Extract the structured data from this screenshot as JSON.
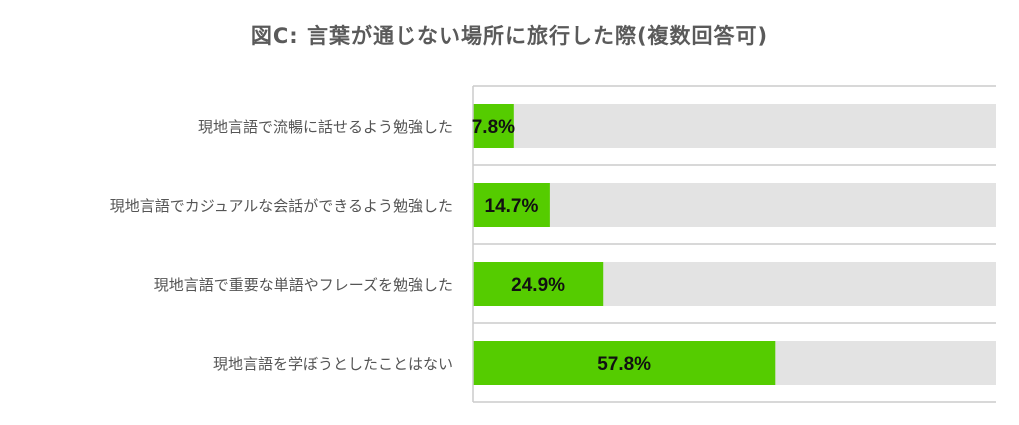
{
  "chart_data": {
    "type": "bar",
    "orientation": "horizontal",
    "title": "図C: 言葉が通じない場所に旅行した際(複数回答可)",
    "categories": [
      "現地言語で流暢に話せるよう勉強した",
      "現地言語でカジュアルな会話ができるよう勉強した",
      "現地言語で重要な単語やフレーズを勉強した",
      "現地言語を学ぼうとしたことはない"
    ],
    "values": [
      7.8,
      14.7,
      24.9,
      57.8
    ],
    "value_labels": [
      "7.8%",
      "14.7%",
      "24.9%",
      "57.8%"
    ],
    "unit": "%",
    "xlim": [
      0,
      100
    ],
    "grid": false,
    "legend": "none",
    "colors": {
      "bar": "#55cc00",
      "track": "#e3e3e3",
      "separator": "#ffffff",
      "axis": "#cccccc"
    }
  }
}
